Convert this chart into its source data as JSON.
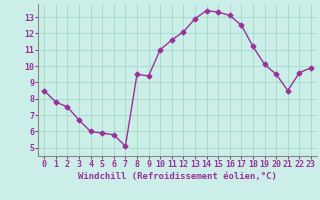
{
  "x": [
    0,
    1,
    2,
    3,
    4,
    5,
    6,
    7,
    8,
    9,
    10,
    11,
    12,
    13,
    14,
    15,
    16,
    17,
    18,
    19,
    20,
    21,
    22,
    23
  ],
  "y": [
    8.5,
    7.8,
    7.5,
    6.7,
    6.0,
    5.9,
    5.8,
    5.1,
    9.5,
    9.4,
    11.0,
    11.6,
    12.1,
    12.9,
    13.4,
    13.3,
    13.1,
    12.5,
    11.2,
    10.1,
    9.5,
    8.5,
    9.6,
    9.9
  ],
  "line_color": "#993399",
  "marker": "D",
  "markersize": 2.5,
  "linewidth": 1.0,
  "bg_color": "#cceee8",
  "grid_color": "#aaddcc",
  "text_color": "#993399",
  "xlabel": "Windchill (Refroidissement éolien,°C)",
  "xlabel_fontsize": 6.5,
  "tick_fontsize": 6.0,
  "xlim": [
    -0.5,
    23.5
  ],
  "ylim": [
    4.5,
    13.8
  ],
  "yticks": [
    5,
    6,
    7,
    8,
    9,
    10,
    11,
    12,
    13
  ],
  "xticks": [
    0,
    1,
    2,
    3,
    4,
    5,
    6,
    7,
    8,
    9,
    10,
    11,
    12,
    13,
    14,
    15,
    16,
    17,
    18,
    19,
    20,
    21,
    22,
    23
  ]
}
